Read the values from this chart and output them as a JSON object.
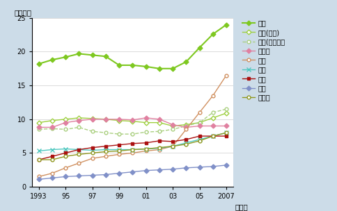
{
  "years": [
    1993,
    1994,
    1995,
    1996,
    1997,
    1998,
    1999,
    2000,
    2001,
    2002,
    2003,
    2004,
    2005,
    2006,
    2007
  ],
  "usa": [
    18.2,
    18.8,
    19.2,
    19.7,
    19.5,
    19.3,
    18.0,
    18.0,
    17.8,
    17.5,
    17.5,
    18.5,
    20.6,
    22.6,
    24.0
  ],
  "usa_citizen": [
    9.5,
    9.8,
    10.0,
    10.2,
    10.1,
    10.0,
    9.8,
    9.7,
    9.5,
    9.5,
    9.0,
    9.2,
    9.5,
    10.2,
    10.9
  ],
  "usa_foreign": [
    8.5,
    8.6,
    8.5,
    8.8,
    8.2,
    8.0,
    7.8,
    7.8,
    8.1,
    8.2,
    8.5,
    9.0,
    9.5,
    11.0,
    11.5
  ],
  "germany": [
    8.8,
    8.8,
    9.5,
    9.8,
    10.0,
    10.0,
    10.0,
    9.9,
    10.2,
    10.0,
    9.2,
    8.8,
    9.0,
    9.0,
    9.0
  ],
  "china": [
    1.5,
    2.0,
    2.8,
    3.5,
    4.2,
    4.5,
    4.8,
    5.0,
    5.3,
    5.5,
    6.0,
    8.5,
    11.0,
    13.5,
    16.5
  ],
  "uk": [
    5.3,
    5.5,
    5.6,
    5.5,
    5.4,
    5.5,
    5.5,
    5.5,
    5.6,
    5.7,
    6.0,
    6.5,
    7.0,
    7.5,
    8.0
  ],
  "japan": [
    4.0,
    4.5,
    5.0,
    5.5,
    5.8,
    6.0,
    6.2,
    6.4,
    6.5,
    6.8,
    6.7,
    7.0,
    7.5,
    7.5,
    7.5
  ],
  "korea": [
    1.1,
    1.3,
    1.5,
    1.6,
    1.7,
    1.8,
    2.0,
    2.2,
    2.4,
    2.5,
    2.6,
    2.8,
    2.9,
    3.0,
    3.2
  ],
  "india": [
    4.0,
    4.0,
    4.5,
    4.8,
    5.0,
    5.2,
    5.3,
    5.5,
    5.6,
    5.8,
    6.0,
    6.3,
    6.8,
    7.5,
    8.0
  ],
  "bg_color": "#ccdce8",
  "plot_bg": "#ffffff",
  "ylim": [
    0,
    25
  ],
  "yticks": [
    0,
    5,
    10,
    15,
    20,
    25
  ],
  "xtick_labels": [
    "1993",
    "95",
    "97",
    "99",
    "01",
    "03",
    "05",
    "2007"
  ],
  "xtick_positions": [
    1993,
    1995,
    1997,
    1999,
    2001,
    2003,
    2005,
    2007
  ],
  "ylabel": "（千人）",
  "xlabel": "（年）",
  "usa_color": "#7ec820",
  "usa_citizen_color": "#9ed040",
  "usa_foreign_color": "#aad080",
  "germany_color": "#e080a0",
  "china_color": "#d09060",
  "uk_color": "#50c8c0",
  "japan_color": "#aa1010",
  "korea_color": "#8090c8",
  "india_color": "#909820"
}
